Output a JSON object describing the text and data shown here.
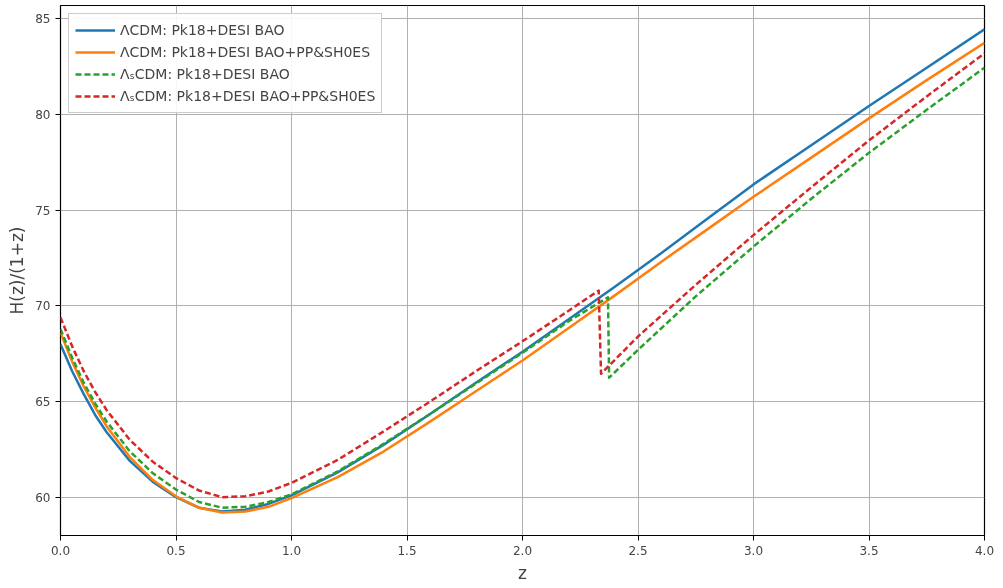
{
  "chart_data": {
    "type": "line",
    "xlabel": "z",
    "ylabel": "H(z)/(1+z)",
    "xlim": [
      0,
      4
    ],
    "ylim": [
      58,
      85.7
    ],
    "xticks": [
      {
        "value": 0,
        "label": "0.0"
      },
      {
        "value": 0.5,
        "label": "0.5"
      },
      {
        "value": 1,
        "label": "1.0"
      },
      {
        "value": 1.5,
        "label": "1.5"
      },
      {
        "value": 2,
        "label": "2.0"
      },
      {
        "value": 2.5,
        "label": "2.5"
      },
      {
        "value": 3,
        "label": "3.0"
      },
      {
        "value": 3.5,
        "label": "3.5"
      },
      {
        "value": 4,
        "label": "4.0"
      }
    ],
    "yticks": [
      60,
      65,
      70,
      75,
      80,
      85
    ],
    "grid": true,
    "legend": "top left",
    "series": [
      {
        "name": "ΛCDM: Pk18+DESI BAO",
        "color": "#1f77b4",
        "line_style": "solid",
        "x": [
          0,
          0.05,
          0.1,
          0.15,
          0.2,
          0.3,
          0.4,
          0.5,
          0.6,
          0.7,
          0.8,
          0.9,
          1.0,
          1.2,
          1.4,
          1.6,
          1.8,
          2.0,
          2.2,
          2.4,
          2.6,
          2.8,
          3.0,
          3.25,
          3.5,
          3.75,
          4.0
        ],
        "values": [
          68.0,
          66.6,
          65.4,
          64.3,
          63.4,
          61.9,
          60.8,
          60.0,
          59.45,
          59.25,
          59.35,
          59.65,
          60.1,
          61.3,
          62.75,
          64.35,
          66.0,
          67.6,
          69.3,
          71.0,
          72.75,
          74.55,
          76.35,
          78.4,
          80.45,
          82.45,
          84.45
        ]
      },
      {
        "name": "ΛCDM: Pk18+DESI BAO+PP&SH0ES",
        "color": "#ff7f0e",
        "line_style": "solid",
        "x": [
          0,
          0.05,
          0.1,
          0.15,
          0.2,
          0.3,
          0.4,
          0.5,
          0.6,
          0.7,
          0.8,
          0.9,
          1.0,
          1.2,
          1.4,
          1.6,
          1.8,
          2.0,
          2.2,
          2.4,
          2.6,
          2.8,
          3.0,
          3.25,
          3.5,
          3.75,
          4.0
        ],
        "values": [
          68.6,
          67.1,
          65.8,
          64.7,
          63.7,
          62.1,
          60.9,
          60.05,
          59.45,
          59.2,
          59.25,
          59.5,
          59.95,
          61.05,
          62.4,
          63.95,
          65.55,
          67.15,
          68.85,
          70.55,
          72.3,
          74.0,
          75.7,
          77.75,
          79.8,
          81.8,
          83.75
        ]
      },
      {
        "name": "ΛₛCDM: Pk18+DESI BAO",
        "color": "#2ca02c",
        "line_style": "dashed",
        "x": [
          0,
          0.05,
          0.1,
          0.15,
          0.2,
          0.3,
          0.4,
          0.5,
          0.6,
          0.7,
          0.8,
          0.9,
          1.0,
          1.2,
          1.4,
          1.6,
          1.8,
          2.0,
          2.2,
          2.37,
          2.375,
          2.5,
          2.75,
          3.0,
          3.25,
          3.5,
          3.75,
          4.0
        ],
        "values": [
          68.8,
          67.3,
          66.0,
          64.9,
          63.95,
          62.4,
          61.25,
          60.4,
          59.75,
          59.45,
          59.5,
          59.75,
          60.15,
          61.35,
          62.8,
          64.35,
          65.95,
          67.55,
          69.2,
          70.45,
          66.25,
          67.7,
          70.5,
          73.1,
          75.6,
          78.0,
          80.25,
          82.45
        ]
      },
      {
        "name": "ΛₛCDM: Pk18+DESI BAO+PP&SH0ES",
        "color": "#d62728",
        "line_style": "dashed",
        "x": [
          0,
          0.05,
          0.1,
          0.15,
          0.2,
          0.3,
          0.4,
          0.5,
          0.6,
          0.7,
          0.8,
          0.9,
          1.0,
          1.2,
          1.4,
          1.6,
          1.8,
          2.0,
          2.2,
          2.33,
          2.34,
          2.5,
          2.75,
          3.0,
          3.25,
          3.5,
          3.75,
          4.0
        ],
        "values": [
          69.4,
          67.9,
          66.6,
          65.5,
          64.55,
          63.0,
          61.85,
          61.0,
          60.35,
          60.0,
          60.05,
          60.3,
          60.75,
          61.95,
          63.45,
          65.0,
          66.6,
          68.15,
          69.75,
          70.8,
          66.45,
          68.4,
          71.1,
          73.7,
          76.2,
          78.65,
          80.95,
          83.2
        ]
      }
    ]
  }
}
